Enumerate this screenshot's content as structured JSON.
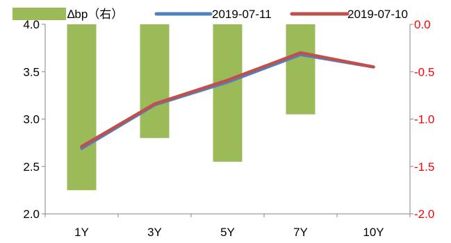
{
  "chart_data": {
    "type": "bar",
    "categories": [
      "1Y",
      "3Y",
      "5Y",
      "7Y",
      "10Y"
    ],
    "series": [
      {
        "name": "∆bp（右）",
        "kind": "bar",
        "axis": "right",
        "color": "#9BBB59",
        "values": [
          -1.75,
          -1.2,
          -1.45,
          -0.95,
          0.0
        ]
      },
      {
        "name": "2019-07-11",
        "kind": "line",
        "axis": "left",
        "color": "#4F81BD",
        "values": [
          2.69,
          3.15,
          3.39,
          3.68,
          3.55
        ]
      },
      {
        "name": "2019-07-10",
        "kind": "line",
        "axis": "left",
        "color": "#C0504D",
        "values": [
          2.71,
          3.16,
          3.41,
          3.7,
          3.55
        ]
      }
    ],
    "y_left": {
      "min": 2.0,
      "max": 4.0,
      "ticks": [
        "2.0",
        "2.5",
        "3.0",
        "3.5",
        "4.0"
      ],
      "color": "#000000"
    },
    "y_right": {
      "min": -2.0,
      "max": 0.0,
      "ticks": [
        "-2.0",
        "-1.5",
        "-1.0",
        "-0.5",
        "0.0"
      ],
      "color": "#FF0000"
    },
    "grid": false,
    "legend": "top"
  }
}
